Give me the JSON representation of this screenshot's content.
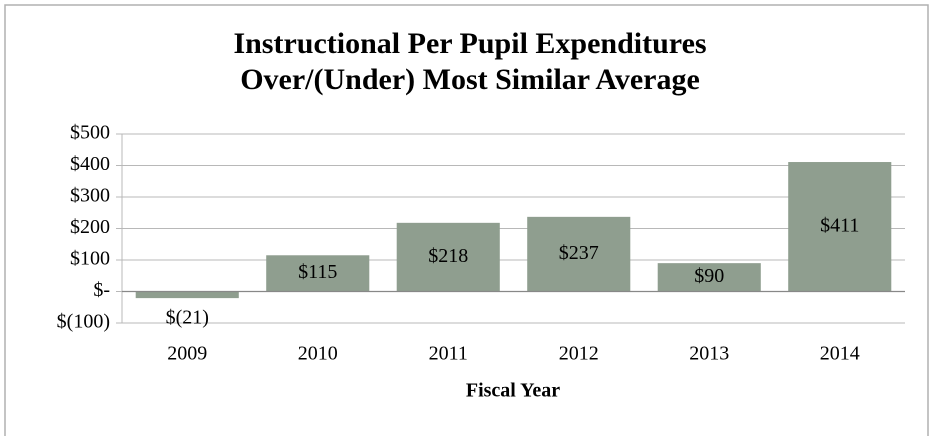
{
  "chart_data": {
    "type": "bar",
    "title": [
      "Instructional Per Pupil Expenditures",
      "Over/(Under)  Most Similar Average"
    ],
    "x_label": "Fiscal Year",
    "categories": [
      "2009",
      "2010",
      "2011",
      "2012",
      "2013",
      "2014"
    ],
    "values": [
      -21,
      115,
      218,
      237,
      90,
      411
    ],
    "value_labels": [
      "$(21)",
      "$115",
      "$218",
      "$237",
      "$90",
      "$411"
    ],
    "color": "#8f9e8f",
    "ylim": [
      -100,
      500
    ],
    "yticks": [
      {
        "value": -100,
        "label": "$(100)"
      },
      {
        "value": 0,
        "label": "$-"
      },
      {
        "value": 100,
        "label": "$100"
      },
      {
        "value": 200,
        "label": "$200"
      },
      {
        "value": 300,
        "label": "$300"
      },
      {
        "value": 400,
        "label": "$400"
      },
      {
        "value": 500,
        "label": "$500"
      }
    ],
    "grid": true
  }
}
